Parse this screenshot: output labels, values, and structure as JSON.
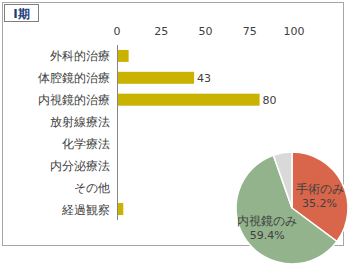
{
  "chart_data": [
    {
      "type": "bar",
      "title": "Ⅰ期",
      "orientation": "horizontal",
      "categories": [
        "外科的治療",
        "体腔鏡的治療",
        "内視鏡的治療",
        "放射線療法",
        "化学療法",
        "内分泌療法",
        "その他",
        "経過観察"
      ],
      "values": [
        6,
        43,
        80,
        0,
        0,
        0,
        0,
        3
      ],
      "data_labels": true,
      "value_labels": [
        null,
        "43",
        "80",
        null,
        null,
        null,
        null,
        null
      ],
      "color": "#c9b300",
      "xlim": [
        0,
        100
      ],
      "xticks": [
        0,
        25,
        50,
        75,
        100
      ],
      "grid": false
    },
    {
      "type": "pie",
      "categories": [
        "手術のみ",
        "内視鏡のみ",
        null
      ],
      "values": [
        35.2,
        59.4,
        5.4
      ],
      "data_labels": true,
      "value_labels": [
        "35.2%",
        "59.4%",
        null
      ],
      "colors": [
        "#d9664b",
        "#93b38d",
        "#d9d9d9"
      ]
    }
  ]
}
